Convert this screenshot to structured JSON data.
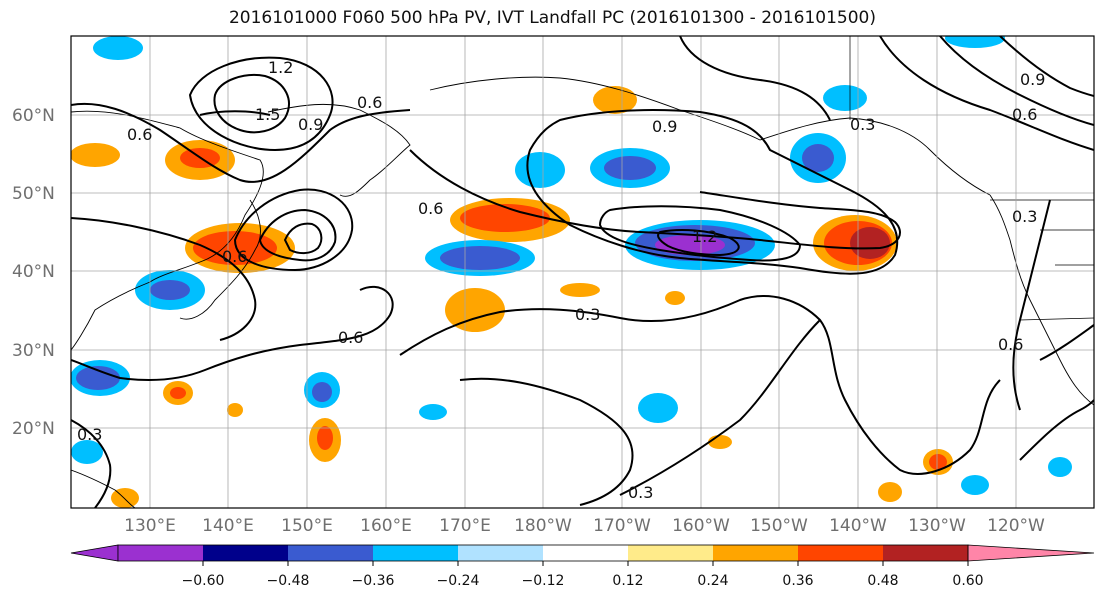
{
  "title": "2016101000 F060 500 hPa PV, IVT Landfall PC (2016101300 - 2016101500)",
  "lat_labels": [
    "60°N",
    "50°N",
    "40°N",
    "30°N",
    "20°N"
  ],
  "lon_labels": [
    "130°E",
    "140°E",
    "150°E",
    "160°E",
    "170°E",
    "180°W",
    "170°W",
    "160°W",
    "150°W",
    "140°W",
    "130°W",
    "120°W"
  ],
  "contour_labels": [
    "1.2",
    "1.5",
    "0.9",
    "0.6",
    "0.6",
    "0.9",
    "0.3",
    "0.6",
    "0.3",
    "0.6",
    "0.3",
    "0.6",
    "1.2",
    "0.9",
    "0.6",
    "0.3",
    "0.3",
    "0.6"
  ],
  "colorbar": {
    "colors": [
      "#9b30d0",
      "#00008b",
      "#3a5bd0",
      "#00bfff",
      "#b0e2ff",
      "#ffffff",
      "#ffeb8a",
      "#ffa500",
      "#ff4500",
      "#b22222",
      "#ff85a8"
    ],
    "tick_labels": [
      "−0.60",
      "−0.48",
      "−0.36",
      "−0.24",
      "−0.12",
      "0.12",
      "0.24",
      "0.36",
      "0.48",
      "0.60"
    ]
  }
}
